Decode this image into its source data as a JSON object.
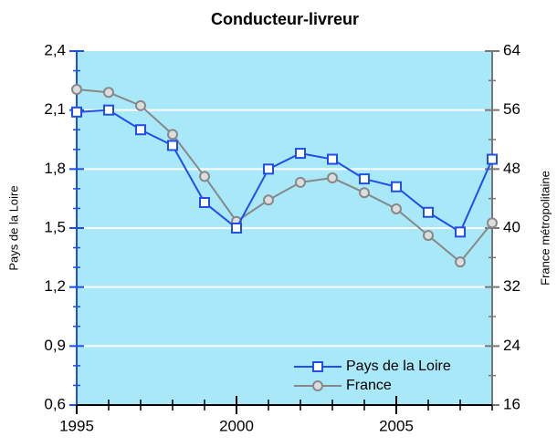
{
  "chart_data": {
    "type": "line",
    "title": "Conducteur-livreur",
    "ylabel": "Pays de la Loire",
    "y2label": "France métropolitaine",
    "x": [
      1995,
      1996,
      1997,
      1998,
      1999,
      2000,
      2001,
      2002,
      2003,
      2004,
      2005,
      2006,
      2007,
      2008
    ],
    "xlim": [
      1995,
      2008
    ],
    "xticks": [
      1995,
      2000,
      2005
    ],
    "ylim": [
      0.6,
      2.4
    ],
    "yticks": [
      {
        "value": 0.6,
        "label": "0,6"
      },
      {
        "value": 0.9,
        "label": "0,9"
      },
      {
        "value": 1.2,
        "label": "1,2"
      },
      {
        "value": 1.5,
        "label": "1,5"
      },
      {
        "value": 1.8,
        "label": "1,8"
      },
      {
        "value": 2.1,
        "label": "2,1"
      },
      {
        "value": 2.4,
        "label": "2,4"
      }
    ],
    "y2lim": [
      16,
      64
    ],
    "y2ticks": [
      16,
      24,
      32,
      40,
      48,
      56,
      64
    ],
    "grid": true,
    "legend": "lower right",
    "series": [
      {
        "name": "Pays de la Loire",
        "color": "#1f4fe8",
        "marker": "square",
        "values": [
          2.09,
          2.1,
          2.0,
          1.92,
          1.63,
          1.5,
          1.8,
          1.88,
          1.85,
          1.75,
          1.71,
          1.58,
          1.48,
          1.85
        ]
      },
      {
        "name": "France",
        "color": "#888888",
        "marker": "circle",
        "axis": "y2",
        "values": [
          58.8,
          58.4,
          56.6,
          52.7,
          47.0,
          40.9,
          43.8,
          46.2,
          46.8,
          44.8,
          42.6,
          39.0,
          35.4,
          40.7
        ]
      }
    ]
  }
}
